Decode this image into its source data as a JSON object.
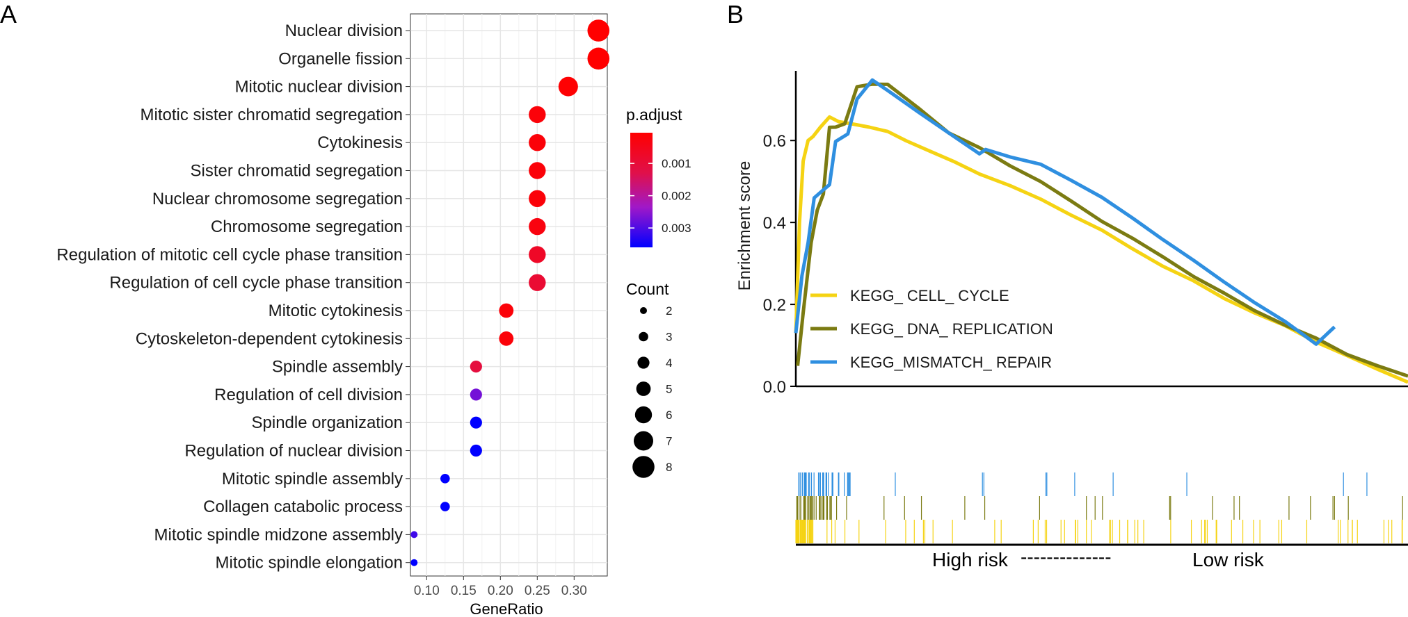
{
  "chart_data": [
    {
      "panel": "A",
      "type": "scatter",
      "subtype": "dotplot",
      "xlabel": "GeneRatio",
      "x_ticks": [
        "0.10",
        "0.15",
        "0.20",
        "0.25",
        "0.30"
      ],
      "xlim": [
        0.078,
        0.345
      ],
      "categories": [
        "Nuclear division",
        "Organelle fission",
        "Mitotic nuclear division",
        "Mitotic sister chromatid segregation",
        "Cytokinesis",
        "Sister chromatid segregation",
        "Nuclear chromosome segregation",
        "Chromosome segregation",
        "Regulation of mitotic cell cycle phase transition",
        "Regulation of cell cycle phase transition",
        "Mitotic cytokinesis",
        "Cytoskeleton-dependent cytokinesis",
        "Spindle assembly",
        "Regulation of cell division",
        "Spindle organization",
        "Regulation of nuclear division",
        "Mitotic spindle assembly",
        "Collagen catabolic process",
        "Mitotic spindle midzone assembly",
        "Mitotic spindle elongation"
      ],
      "gene_ratio": [
        0.333,
        0.333,
        0.292,
        0.25,
        0.25,
        0.25,
        0.25,
        0.25,
        0.25,
        0.25,
        0.208,
        0.208,
        0.167,
        0.167,
        0.167,
        0.167,
        0.125,
        0.125,
        0.083,
        0.083
      ],
      "count": [
        8,
        8,
        7,
        6,
        6,
        6,
        6,
        6,
        6,
        6,
        5,
        5,
        4,
        4,
        4,
        4,
        3,
        3,
        2,
        2
      ],
      "p_adjust": [
        5e-05,
        5e-05,
        0.0001,
        0.0002,
        0.0002,
        0.0002,
        0.0002,
        0.0003,
        0.0007,
        0.0009,
        0.0002,
        0.0002,
        0.0011,
        0.0027,
        0.0036,
        0.0036,
        0.0036,
        0.0036,
        0.0031,
        0.0036
      ],
      "color_legend": {
        "title": "p.adjust",
        "ticks": [
          "0.001",
          "0.002",
          "0.003"
        ],
        "tick_values": [
          0.001,
          0.002,
          0.003
        ],
        "range": [
          5e-05,
          0.0036
        ],
        "low_color": "#ff0000",
        "high_color": "#0000ff"
      },
      "size_legend": {
        "title": "Count",
        "values": [
          2,
          3,
          4,
          5,
          6,
          7,
          8
        ]
      }
    },
    {
      "panel": "B",
      "type": "line",
      "ylabel": "Enrichment score",
      "y_ticks": [
        "0.0",
        "0.2",
        "0.4",
        "0.6"
      ],
      "ylim": [
        0,
        0.77
      ],
      "x_axis_labels": {
        "left": "High risk",
        "separator": "--------------",
        "right": "Low risk"
      },
      "series": [
        {
          "name": "KEGG_ CELL_ CYCLE",
          "color": "#f5d313",
          "x": [
            0,
            0.006,
            0.012,
            0.02,
            0.028,
            0.04,
            0.055,
            0.07,
            0.09,
            0.12,
            0.15,
            0.18,
            0.22,
            0.26,
            0.3,
            0.35,
            0.4,
            0.45,
            0.5,
            0.55,
            0.6,
            0.65,
            0.7,
            0.75,
            0.8,
            0.85,
            0.9,
            0.95,
            1.0
          ],
          "y": [
            0.13,
            0.4,
            0.55,
            0.6,
            0.61,
            0.63,
            0.66,
            0.645,
            0.64,
            0.635,
            0.62,
            0.6,
            0.575,
            0.545,
            0.52,
            0.49,
            0.455,
            0.42,
            0.38,
            0.335,
            0.295,
            0.255,
            0.215,
            0.18,
            0.145,
            0.11,
            0.075,
            0.04,
            0.01
          ]
        },
        {
          "name": "KEGG_ DNA_ REPLICATION",
          "color": "#7b7b12",
          "x": [
            0.003,
            0.012,
            0.025,
            0.035,
            0.045,
            0.055,
            0.065,
            0.08,
            0.1,
            0.125,
            0.15,
            0.2,
            0.25,
            0.3,
            0.35,
            0.4,
            0.45,
            0.5,
            0.55,
            0.6,
            0.65,
            0.7,
            0.75,
            0.8,
            0.85,
            0.9,
            0.95,
            1.0
          ],
          "y": [
            0.05,
            0.18,
            0.35,
            0.43,
            0.47,
            0.63,
            0.635,
            0.64,
            0.73,
            0.74,
            0.735,
            0.68,
            0.62,
            0.58,
            0.54,
            0.5,
            0.45,
            0.405,
            0.36,
            0.315,
            0.27,
            0.225,
            0.185,
            0.15,
            0.115,
            0.08,
            0.05,
            0.025
          ]
        },
        {
          "name": "KEGG_MISMATCH_ REPAIR",
          "color": "#2f8fe0",
          "x": [
            0,
            0.01,
            0.02,
            0.03,
            0.045,
            0.055,
            0.065,
            0.085,
            0.1,
            0.125,
            0.15,
            0.2,
            0.25,
            0.3,
            0.31,
            0.35,
            0.4,
            0.45,
            0.5,
            0.55,
            0.6,
            0.65,
            0.7,
            0.75,
            0.8,
            0.85,
            0.88
          ],
          "y": [
            0.13,
            0.27,
            0.35,
            0.46,
            0.48,
            0.49,
            0.6,
            0.615,
            0.7,
            0.75,
            0.72,
            0.67,
            0.62,
            0.565,
            0.58,
            0.56,
            0.54,
            0.505,
            0.46,
            0.41,
            0.36,
            0.305,
            0.255,
            0.205,
            0.155,
            0.105,
            0.145
          ]
        }
      ]
    }
  ],
  "panels": {
    "a_label": "A",
    "b_label": "B"
  }
}
